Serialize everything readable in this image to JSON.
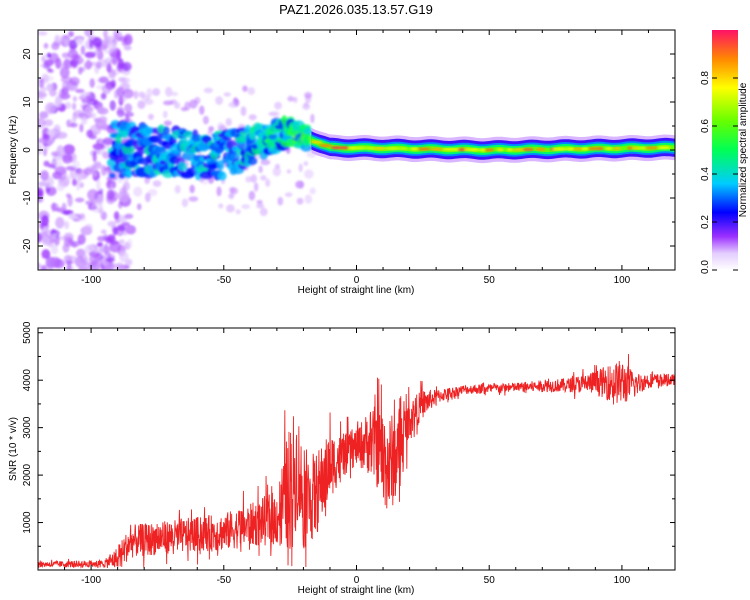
{
  "figure": {
    "title": "PAZ1.2026.035.13.57.G19"
  },
  "chart_data": [
    {
      "type": "heatmap",
      "title": "PAZ1.2026.035.13.57.G19",
      "xlabel": "Height of straight line (km)",
      "ylabel": "Frequency (Hz)",
      "xlim": [
        -120,
        120
      ],
      "ylim": [
        -25,
        25
      ],
      "xticks": [
        -100,
        -50,
        0,
        50,
        100
      ],
      "yticks": [
        -20,
        -10,
        0,
        10,
        20
      ],
      "colorbar": {
        "label": "Normalized spectral amplitude",
        "range": [
          0,
          1
        ],
        "ticks": [
          "0.0",
          "0.2",
          "0.4",
          "0.6",
          "0.8"
        ]
      },
      "description_points": [
        {
          "x": -120,
          "f_center": 0,
          "spread": 25,
          "level": 0.05
        },
        {
          "x": -90,
          "f_center": 0,
          "spread": 6,
          "level": 0.35
        },
        {
          "x": -50,
          "f_center": -1,
          "spread": 5,
          "level": 0.35
        },
        {
          "x": -25,
          "f_center": 4,
          "spread": 3,
          "level": 0.45
        },
        {
          "x": -10,
          "f_center": 0.5,
          "spread": 1.5,
          "level": 0.75
        },
        {
          "x": 50,
          "f_center": 0,
          "spread": 1.2,
          "level": 0.85
        },
        {
          "x": 120,
          "f_center": 0.5,
          "spread": 1.2,
          "level": 0.8
        }
      ]
    },
    {
      "type": "line",
      "xlabel": "Height of straight line (km)",
      "ylabel": "SNR (10 * v/v)",
      "xlim": [
        -120,
        120
      ],
      "ylim": [
        0,
        5100
      ],
      "xticks": [
        -100,
        -50,
        0,
        50,
        100
      ],
      "yticks": [
        1000,
        2000,
        3000,
        4000,
        5000
      ],
      "series": [
        {
          "name": "SNR",
          "color": "#ee2222",
          "envelope_x": [
            -120,
            -95,
            -90,
            -85,
            -70,
            -50,
            -40,
            -30,
            -25,
            -22,
            -20,
            -15,
            -10,
            -5,
            0,
            5,
            8,
            12,
            15,
            20,
            25,
            30,
            40,
            60,
            80,
            90,
            100,
            105,
            110,
            120
          ],
          "envelope_y": [
            120,
            130,
            250,
            600,
            700,
            800,
            950,
            1100,
            1800,
            2200,
            1400,
            1600,
            2200,
            2400,
            2600,
            2700,
            2600,
            2200,
            2400,
            3200,
            3500,
            3650,
            3800,
            3850,
            3900,
            3950,
            3950,
            3900,
            4000,
            4000
          ],
          "noise_amplitude": [
            60,
            80,
            250,
            350,
            350,
            400,
            450,
            600,
            1400,
            1200,
            1000,
            900,
            700,
            450,
            400,
            700,
            900,
            1100,
            900,
            400,
            300,
            150,
            100,
            100,
            150,
            250,
            500,
            250,
            150,
            120
          ]
        }
      ]
    }
  ]
}
